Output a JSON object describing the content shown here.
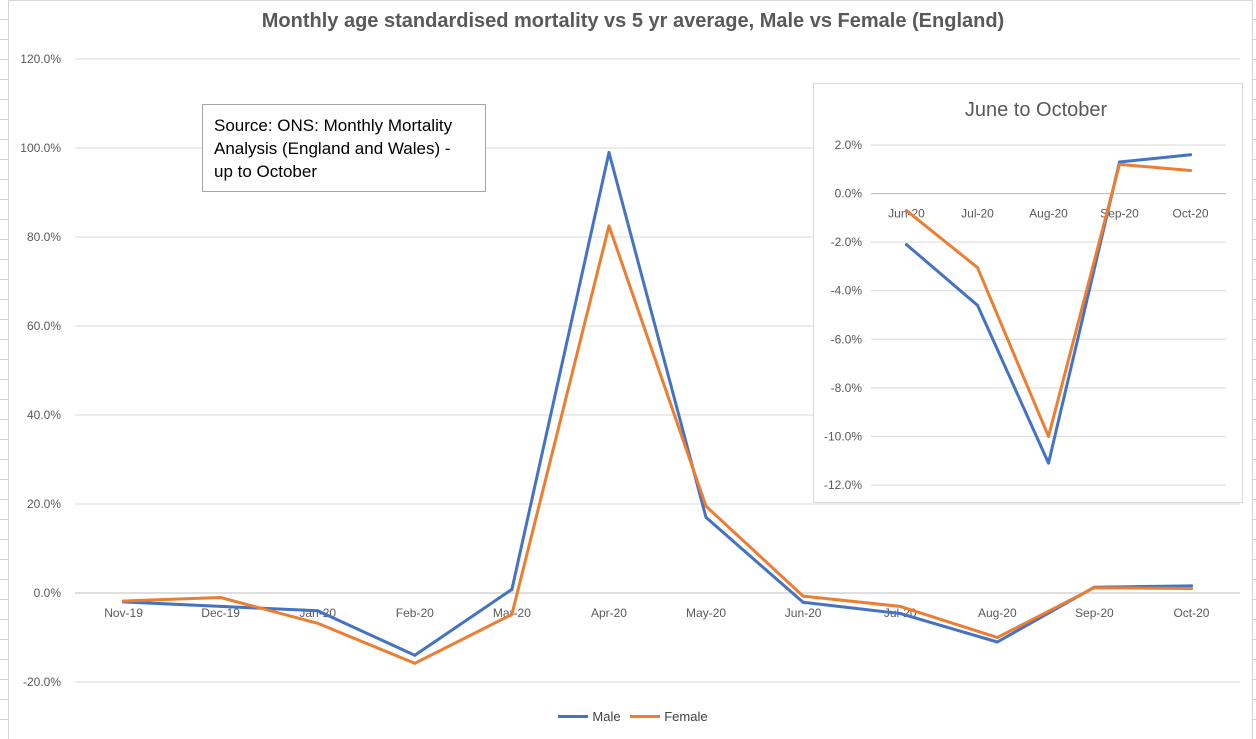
{
  "chart_data": [
    {
      "type": "line",
      "title": "Monthly age standardised mortality vs 5 yr average, Male vs Female (England)",
      "categories": [
        "Nov-19",
        "Dec-19",
        "Jan-20",
        "Feb-20",
        "Mar-20",
        "Apr-20",
        "May-20",
        "Jun-20",
        "Jul-20",
        "Aug-20",
        "Sep-20",
        "Oct-20"
      ],
      "y_tick_labels": [
        "-20.0%",
        "0.0%",
        "20.0%",
        "40.0%",
        "60.0%",
        "80.0%",
        "100.0%",
        "120.0%"
      ],
      "y_ticks": [
        -20,
        0,
        20,
        40,
        60,
        80,
        100,
        120
      ],
      "ylim": [
        -20,
        120
      ],
      "series": [
        {
          "name": "Male",
          "color": "#4472C4",
          "values": [
            -2.0,
            -3.0,
            -4.0,
            -14.0,
            0.8,
            99.0,
            17.0,
            -2.1,
            -4.6,
            -11.0,
            1.3,
            1.6
          ]
        },
        {
          "name": "Female",
          "color": "#ED7D31",
          "values": [
            -1.8,
            -1.0,
            -6.8,
            -15.8,
            -4.8,
            82.5,
            19.5,
            -0.7,
            -3.0,
            -10.0,
            1.2,
            1.0
          ]
        }
      ],
      "legend_position": "bottom",
      "grid": true,
      "annotation": [
        "Source: ONS: Monthly Mortality",
        "Analysis (England and Wales) -",
        "up to October"
      ]
    },
    {
      "type": "line",
      "title": "June to October",
      "categories": [
        "Jun-20",
        "Jul-20",
        "Aug-20",
        "Sep-20",
        "Oct-20"
      ],
      "y_tick_labels": [
        "-12.0%",
        "-10.0%",
        "-8.0%",
        "-6.0%",
        "-4.0%",
        "-2.0%",
        "0.0%",
        "2.0%"
      ],
      "y_ticks": [
        -12,
        -10,
        -8,
        -6,
        -4,
        -2,
        0,
        2
      ],
      "ylim": [
        -12,
        2
      ],
      "series": [
        {
          "name": "Male",
          "color": "#4472C4",
          "values": [
            -2.1,
            -4.6,
            -11.1,
            1.3,
            1.6
          ]
        },
        {
          "name": "Female",
          "color": "#ED7D31",
          "values": [
            -0.7,
            -3.05,
            -10.0,
            1.2,
            0.95
          ]
        }
      ],
      "grid": true
    }
  ]
}
